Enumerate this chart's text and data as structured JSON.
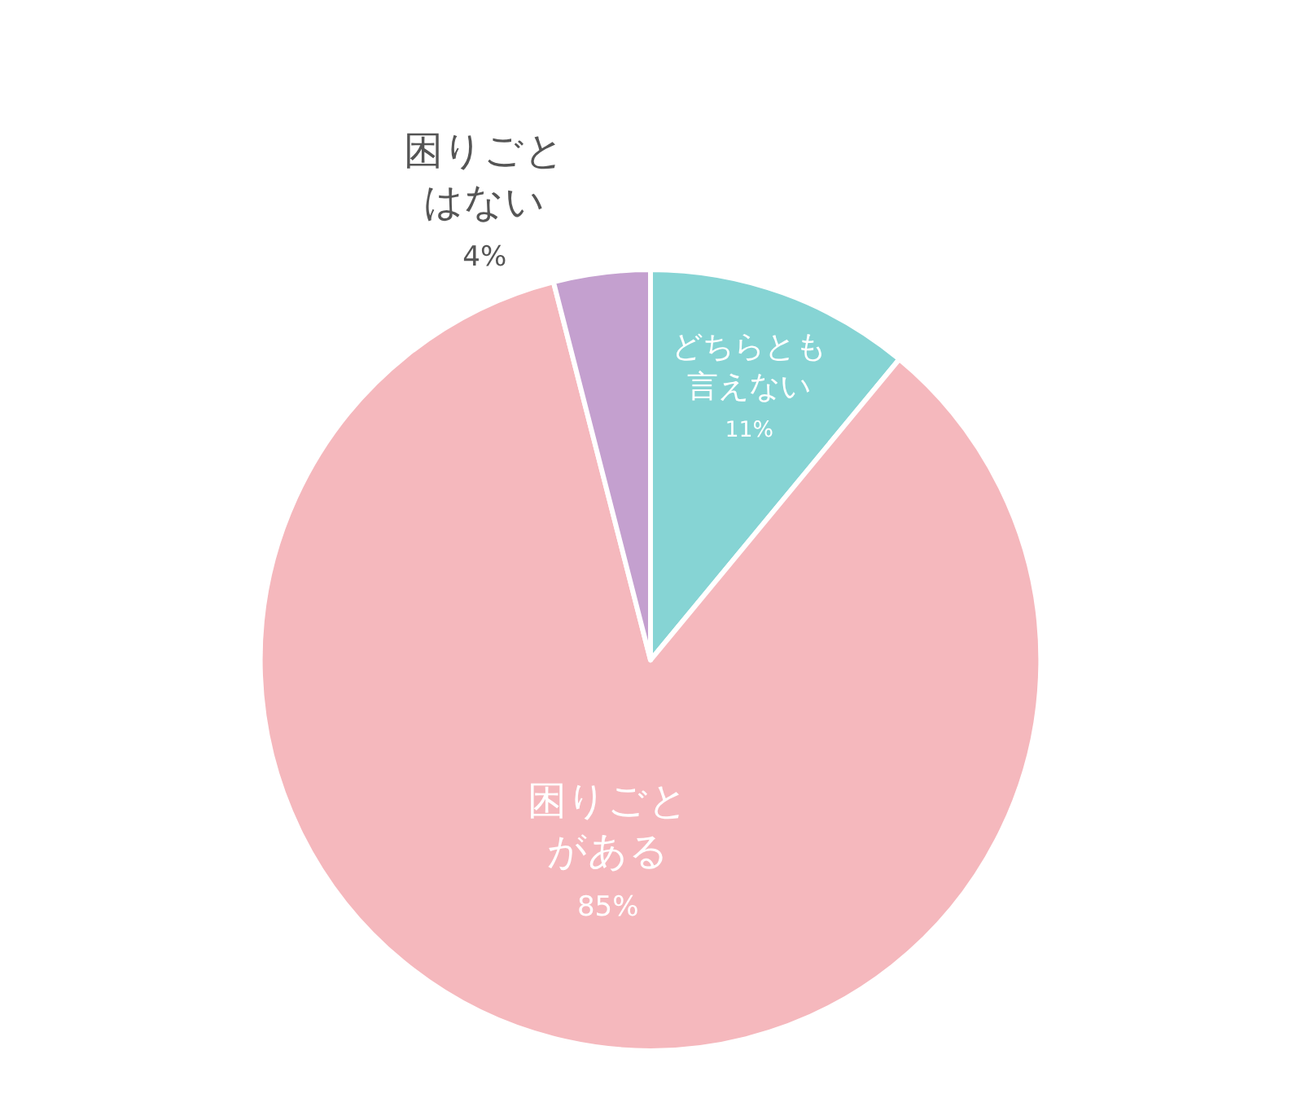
{
  "chart_data": {
    "type": "pie",
    "categories": [
      "どちらとも言えない",
      "困りごとがある",
      "困りごとはない"
    ],
    "values": [
      11,
      85,
      4
    ],
    "colors": [
      "#86d4d4",
      "#f5b8bd",
      "#c4a0cf"
    ],
    "value_labels": [
      "11%",
      "85%",
      "4%"
    ],
    "legend": false
  }
}
